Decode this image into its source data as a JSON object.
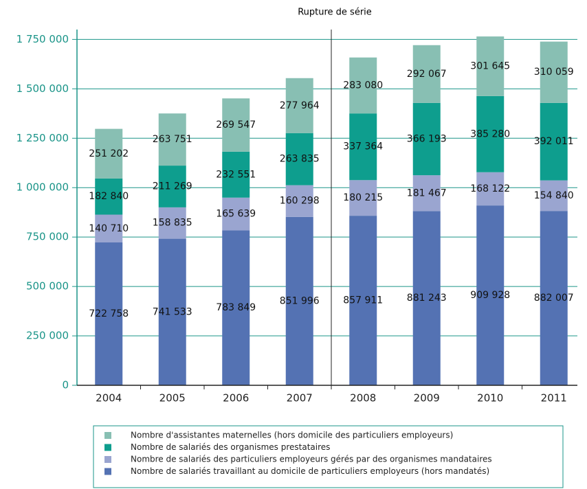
{
  "chart_data": {
    "type": "stacked_bar",
    "annotation": "Rupture de série",
    "categories": [
      "2004",
      "2005",
      "2006",
      "2007",
      "2008",
      "2009",
      "2010",
      "2011"
    ],
    "series": [
      {
        "name": "Nombre de salariés travaillant au domicile de particuliers employeurs (hors mandatés)",
        "color": "#5472b3",
        "values": [
          722758,
          741533,
          783849,
          851996,
          857911,
          881243,
          909928,
          882007
        ],
        "value_labels": [
          "722 758",
          "741 533",
          "783 849",
          "851 996",
          "857 911",
          "881 243",
          "909 928",
          "882 007"
        ]
      },
      {
        "name": "Nombre de salariés des particuliers employeurs gérés par des organismes mandataires",
        "color": "#9aa5d0",
        "values": [
          140710,
          158835,
          165639,
          160298,
          180215,
          181467,
          168122,
          154840
        ],
        "value_labels": [
          "140 710",
          "158 835",
          "165 639",
          "160 298",
          "180 215",
          "181 467",
          "168 122",
          "154 840"
        ]
      },
      {
        "name": "Nombre de salariés des organismes prestataires",
        "color": "#0e9e8e",
        "values": [
          182840,
          211269,
          232551,
          263835,
          337364,
          366193,
          385280,
          392011
        ],
        "value_labels": [
          "182 840",
          "211 269",
          "232 551",
          "263 835",
          "337 364",
          "366 193",
          "385 280",
          "392 011"
        ]
      },
      {
        "name": "Nombre d'assistantes maternelles (hors domicile des particuliers employeurs)",
        "color": "#88bfb3",
        "values": [
          251202,
          263751,
          269547,
          277964,
          283080,
          292067,
          301645,
          310059
        ],
        "value_labels": [
          "251 202",
          "263 751",
          "269 547",
          "277 964",
          "283 080",
          "292 067",
          "301 645",
          "310 059"
        ]
      }
    ],
    "ylim": [
      0,
      1800000
    ],
    "yticks": [
      0,
      {
        "value": 250000,
        "label": "250 000"
      },
      {
        "value": 500000,
        "label": "500 000"
      },
      {
        "value": 750000,
        "label": "750 000"
      },
      {
        "value": 1000000,
        "label": "1 000 000"
      },
      {
        "value": 1250000,
        "label": "1 250 000"
      },
      {
        "value": 1500000,
        "label": "1 500 000"
      },
      {
        "value": 1750000,
        "label": "1 750 000"
      }
    ],
    "grid": true,
    "legend": "bottom",
    "break_after_category": 3
  }
}
